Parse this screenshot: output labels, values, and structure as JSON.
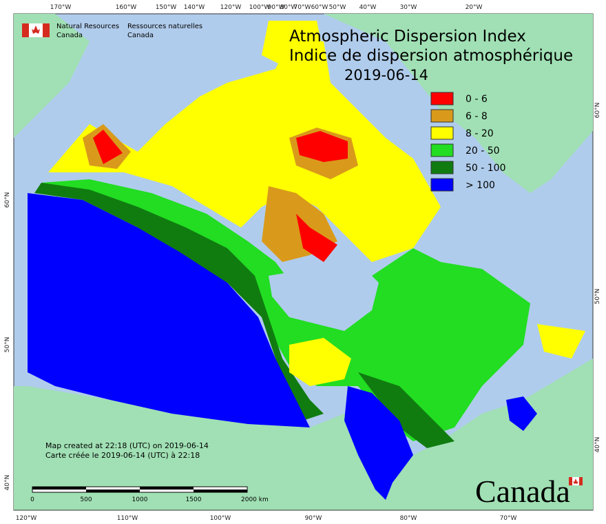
{
  "header": {
    "agency_en": [
      "Natural Resources",
      "Canada"
    ],
    "agency_fr": [
      "Ressources naturelles",
      "Canada"
    ]
  },
  "title": [
    "Atmospheric Dispersion Index",
    "Indice de dispersion atmosphérique"
  ],
  "date": "2019-06-14",
  "legend": [
    {
      "label": "0 - 6",
      "color": "#ff0000"
    },
    {
      "label": "6 - 8",
      "color": "#d99a1b"
    },
    {
      "label": "8 - 20",
      "color": "#ffff00"
    },
    {
      "label": "20 - 50",
      "color": "#22dd22"
    },
    {
      "label": "50 - 100",
      "color": "#107c10"
    },
    {
      "label": "> 100",
      "color": "#0000ff"
    }
  ],
  "credits": [
    "Map created at 22:18 (UTC) on 2019-06-14",
    "Carte créée le 2019-06-14 (UTC) à 22:18"
  ],
  "scale_bar": [
    "0",
    "500",
    "1000",
    "1500",
    "2000  km"
  ],
  "graticule": {
    "top": [
      "170°W",
      "160°W",
      "150°W",
      "140°W",
      "120°W",
      "100°W",
      "90°W",
      "80°W",
      "70°W",
      "60°W",
      "50°W",
      "40°W",
      "30°W",
      "20°W"
    ],
    "bottom": [
      "120°W",
      "110°W",
      "100°W",
      "90°W",
      "80°W",
      "70°W"
    ],
    "left": [
      "60°N",
      "50°N",
      "40°N"
    ],
    "right": [
      "60°N",
      "50°N",
      "40°N"
    ]
  },
  "wordmark": "Canada"
}
